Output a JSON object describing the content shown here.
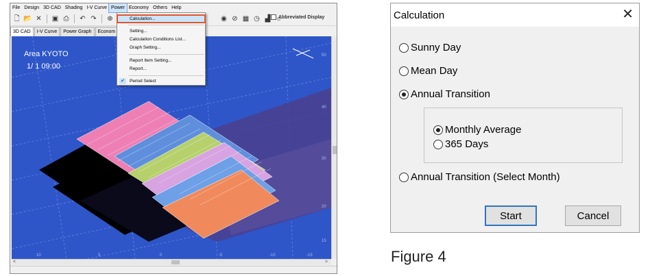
{
  "app": {
    "menu": [
      "File",
      "Design",
      "3D CAD",
      "Shading",
      "I-V Curve",
      "Power",
      "Economy",
      "Others",
      "Help"
    ],
    "active_menu": "Power",
    "toolbar": {
      "icons": [
        "new-icon",
        "open-icon",
        "delete-icon",
        "save-icon",
        "print-icon",
        "undo-icon",
        "redo-icon",
        "zoom-icon"
      ],
      "right_icons": [
        "globe-icon",
        "no-entry-icon",
        "grid-icon",
        "clock-icon",
        "chart-icon",
        "sun-icon"
      ],
      "abbreviated_display": "Abbreviated Display"
    },
    "tabs": [
      "3D CAD",
      "I-V Curve",
      "Power Graph",
      "Econom"
    ],
    "viewport": {
      "area": "Area KYOTO",
      "time": "1/ 1 09:00",
      "right_ticks": [
        "50",
        "40",
        "30",
        "20",
        "15"
      ],
      "bottom_ticks": [
        "10",
        "5",
        "0",
        "-5",
        "-10",
        "-15"
      ]
    },
    "power_menu": {
      "items": [
        "Calculation...",
        "Setting...",
        "Calculation Conditions List...",
        "Graph Setting...",
        "Report Item Setting...",
        "Report...",
        "Period Select"
      ],
      "highlighted": "Calculation...",
      "checked": "Period Select"
    },
    "colors": {
      "sky": "#2e56c8",
      "highlight": "#e2542e"
    }
  },
  "dialog": {
    "title": "Calculation",
    "close": "✕",
    "options": {
      "sunny_day": "Sunny Day",
      "mean_day": "Mean Day",
      "annual_transition": "Annual Transition",
      "monthly_average": "Monthly Average",
      "days_365": "365 Days",
      "annual_select_month": "Annual Transition (Select Month)"
    },
    "selected": [
      "Annual Transition",
      "Monthly Average"
    ],
    "start": "Start",
    "cancel": "Cancel"
  },
  "caption": "Figure 4"
}
